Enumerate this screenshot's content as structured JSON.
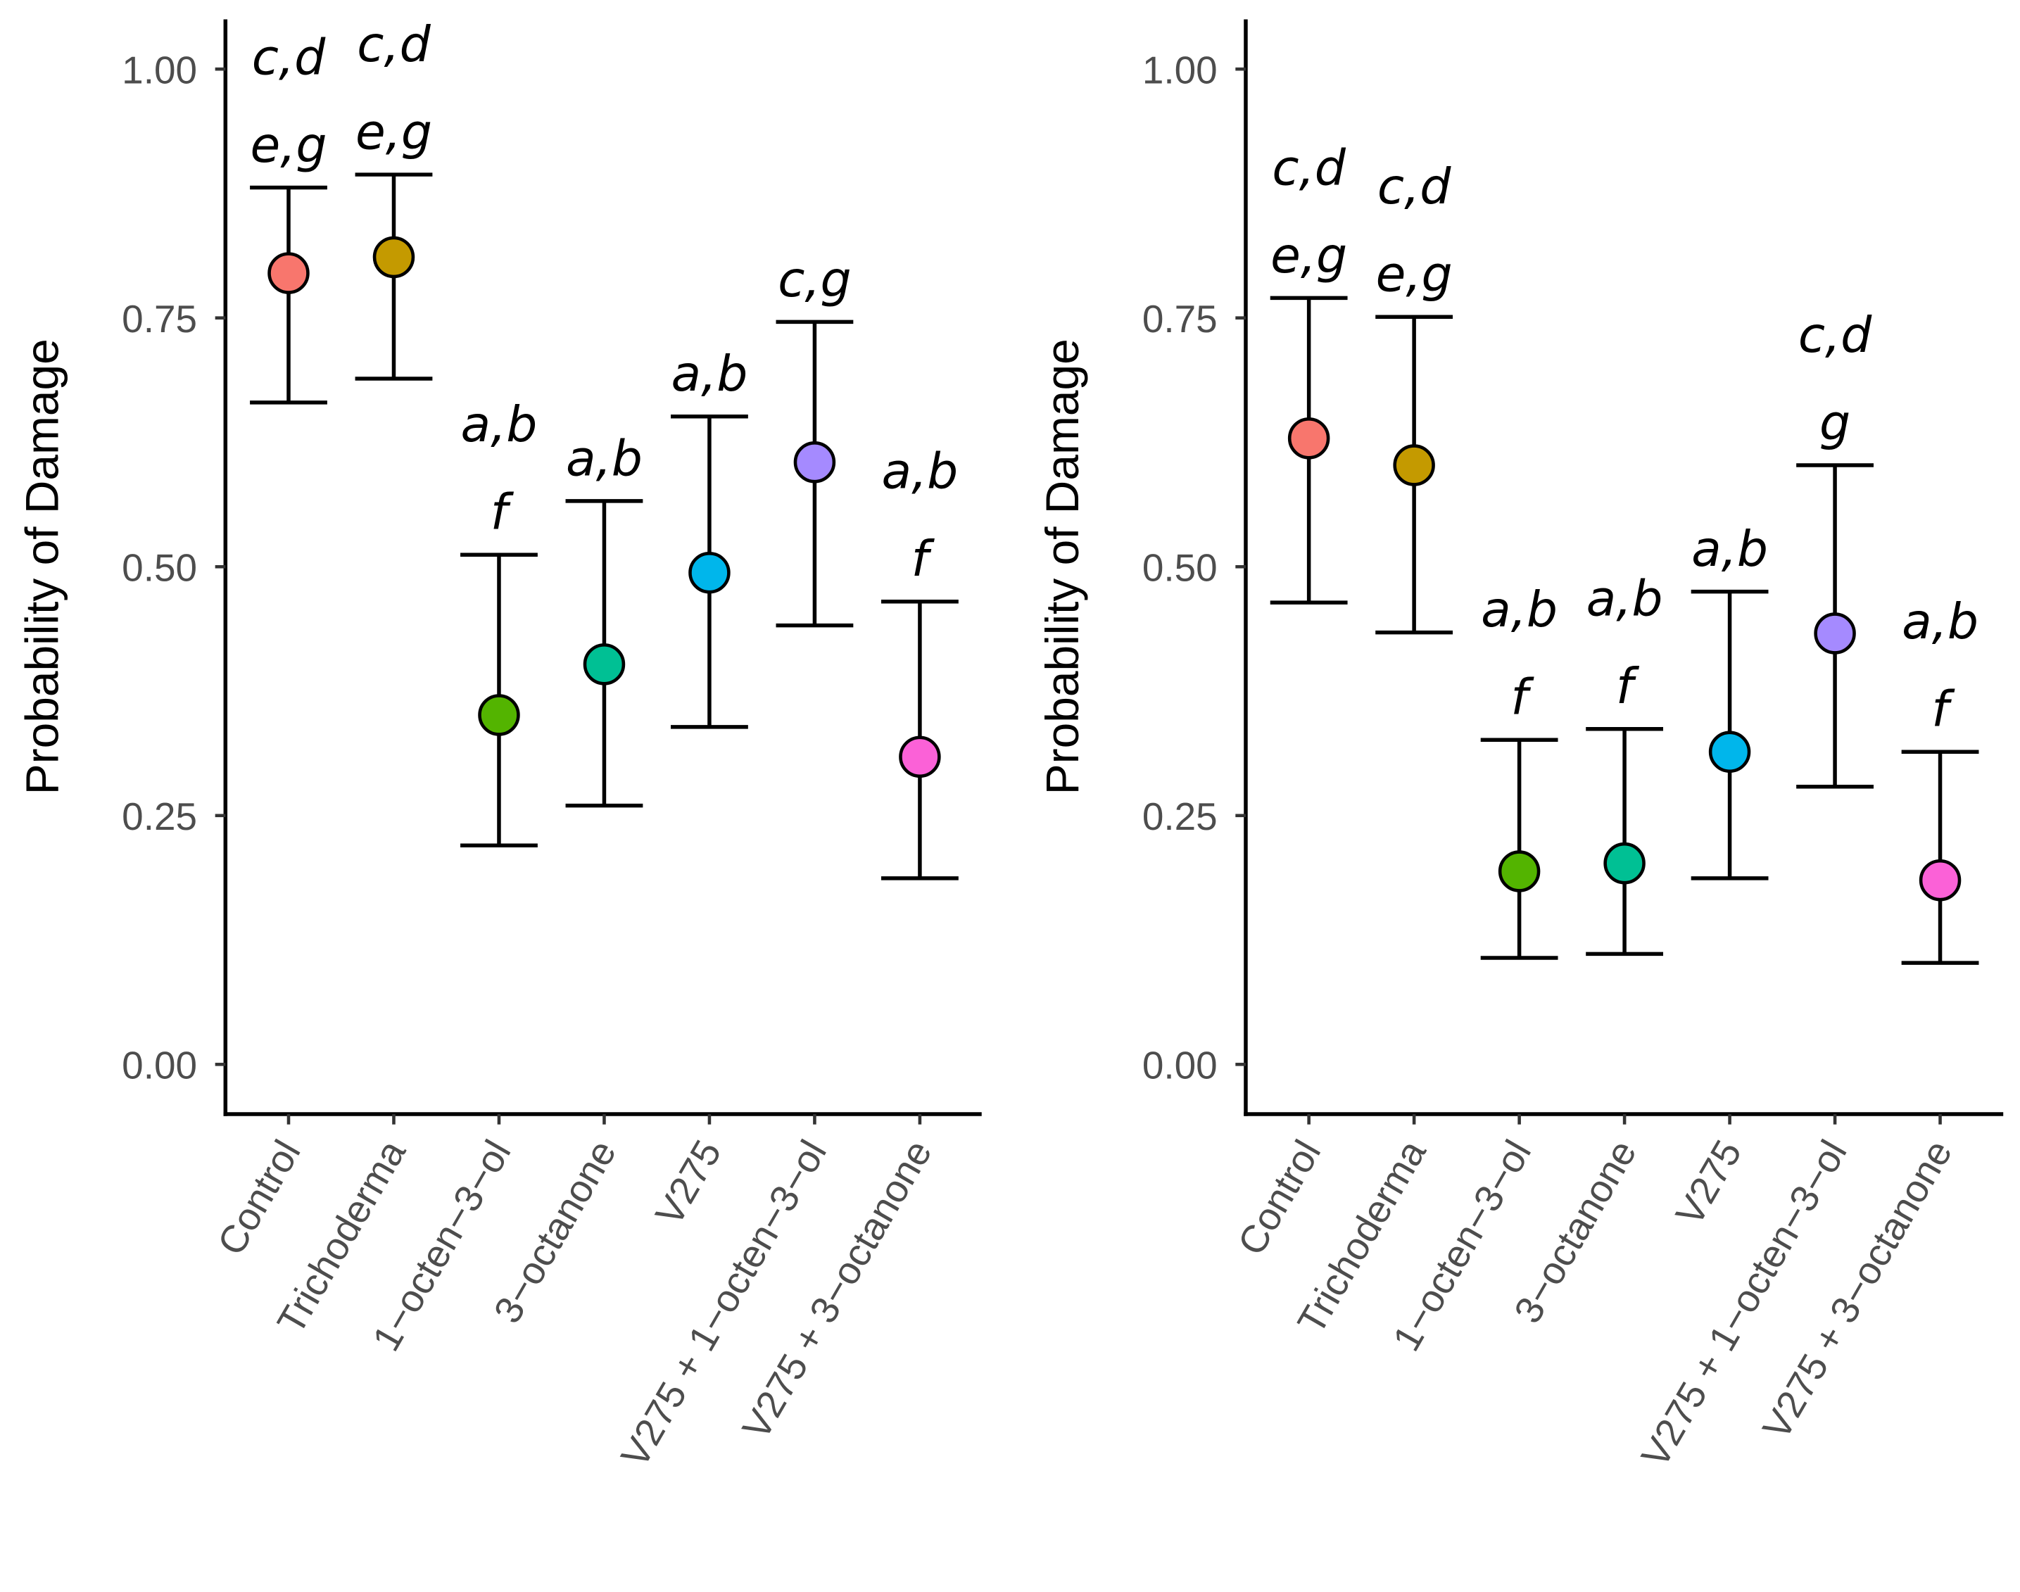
{
  "chart_data": [
    {
      "type": "errorbar",
      "ylabel": "Probability of Damage",
      "categories": [
        "Control",
        "Trichoderma",
        "1−octen−3−ol",
        "3−octanone",
        "V275",
        "V275 + 1−octen−3−ol",
        "V275 + 3−octanone"
      ],
      "values": [
        0.795,
        0.811,
        0.351,
        0.402,
        0.494,
        0.605,
        0.309
      ],
      "lower": [
        0.665,
        0.689,
        0.22,
        0.26,
        0.339,
        0.441,
        0.187
      ],
      "upper": [
        0.881,
        0.894,
        0.512,
        0.566,
        0.651,
        0.746,
        0.465
      ],
      "labels": [
        [
          "c,d",
          "e,g"
        ],
        [
          "c,d",
          "e,g"
        ],
        [
          "a,b",
          "f"
        ],
        [
          "a,b"
        ],
        [
          "a,b"
        ],
        [
          "c,g"
        ],
        [
          "a,b",
          "f"
        ]
      ],
      "colors": [
        "#F8766D",
        "#C49A00",
        "#53B400",
        "#00C094",
        "#00B6EB",
        "#A58AFF",
        "#FB61D7"
      ],
      "ylim": [
        -0.05,
        1.05
      ],
      "yticks": [
        {
          "value": 0,
          "label": "0.00"
        },
        {
          "value": 0.25,
          "label": "0.25"
        },
        {
          "value": 0.5,
          "label": "0.50"
        },
        {
          "value": 0.75,
          "label": "0.75"
        },
        {
          "value": 1,
          "label": "1.00"
        }
      ]
    },
    {
      "type": "errorbar",
      "ylabel": "Probability of Damage",
      "categories": [
        "Control",
        "Trichoderma",
        "1−octen−3−ol",
        "3−octanone",
        "V275",
        "V275 + 1−octen−3−ol",
        "V275 + 3−octanone"
      ],
      "values": [
        0.629,
        0.602,
        0.194,
        0.202,
        0.314,
        0.433,
        0.185
      ],
      "lower": [
        0.464,
        0.434,
        0.107,
        0.111,
        0.187,
        0.279,
        0.102
      ],
      "upper": [
        0.77,
        0.751,
        0.326,
        0.337,
        0.475,
        0.602,
        0.314
      ],
      "labels": [
        [
          "c,d",
          "e,g"
        ],
        [
          "c,d",
          "e,g"
        ],
        [
          "a,b",
          "f"
        ],
        [
          "a,b",
          "f"
        ],
        [
          "a,b"
        ],
        [
          "c,d",
          "g"
        ],
        [
          "a,b",
          "f"
        ]
      ],
      "colors": [
        "#F8766D",
        "#C49A00",
        "#53B400",
        "#00C094",
        "#00B6EB",
        "#A58AFF",
        "#FB61D7"
      ],
      "ylim": [
        -0.05,
        1.05
      ],
      "yticks": [
        {
          "value": 0,
          "label": "0.00"
        },
        {
          "value": 0.25,
          "label": "0.25"
        },
        {
          "value": 0.5,
          "label": "0.50"
        },
        {
          "value": 0.75,
          "label": "0.75"
        },
        {
          "value": 1,
          "label": "1.00"
        }
      ]
    }
  ]
}
